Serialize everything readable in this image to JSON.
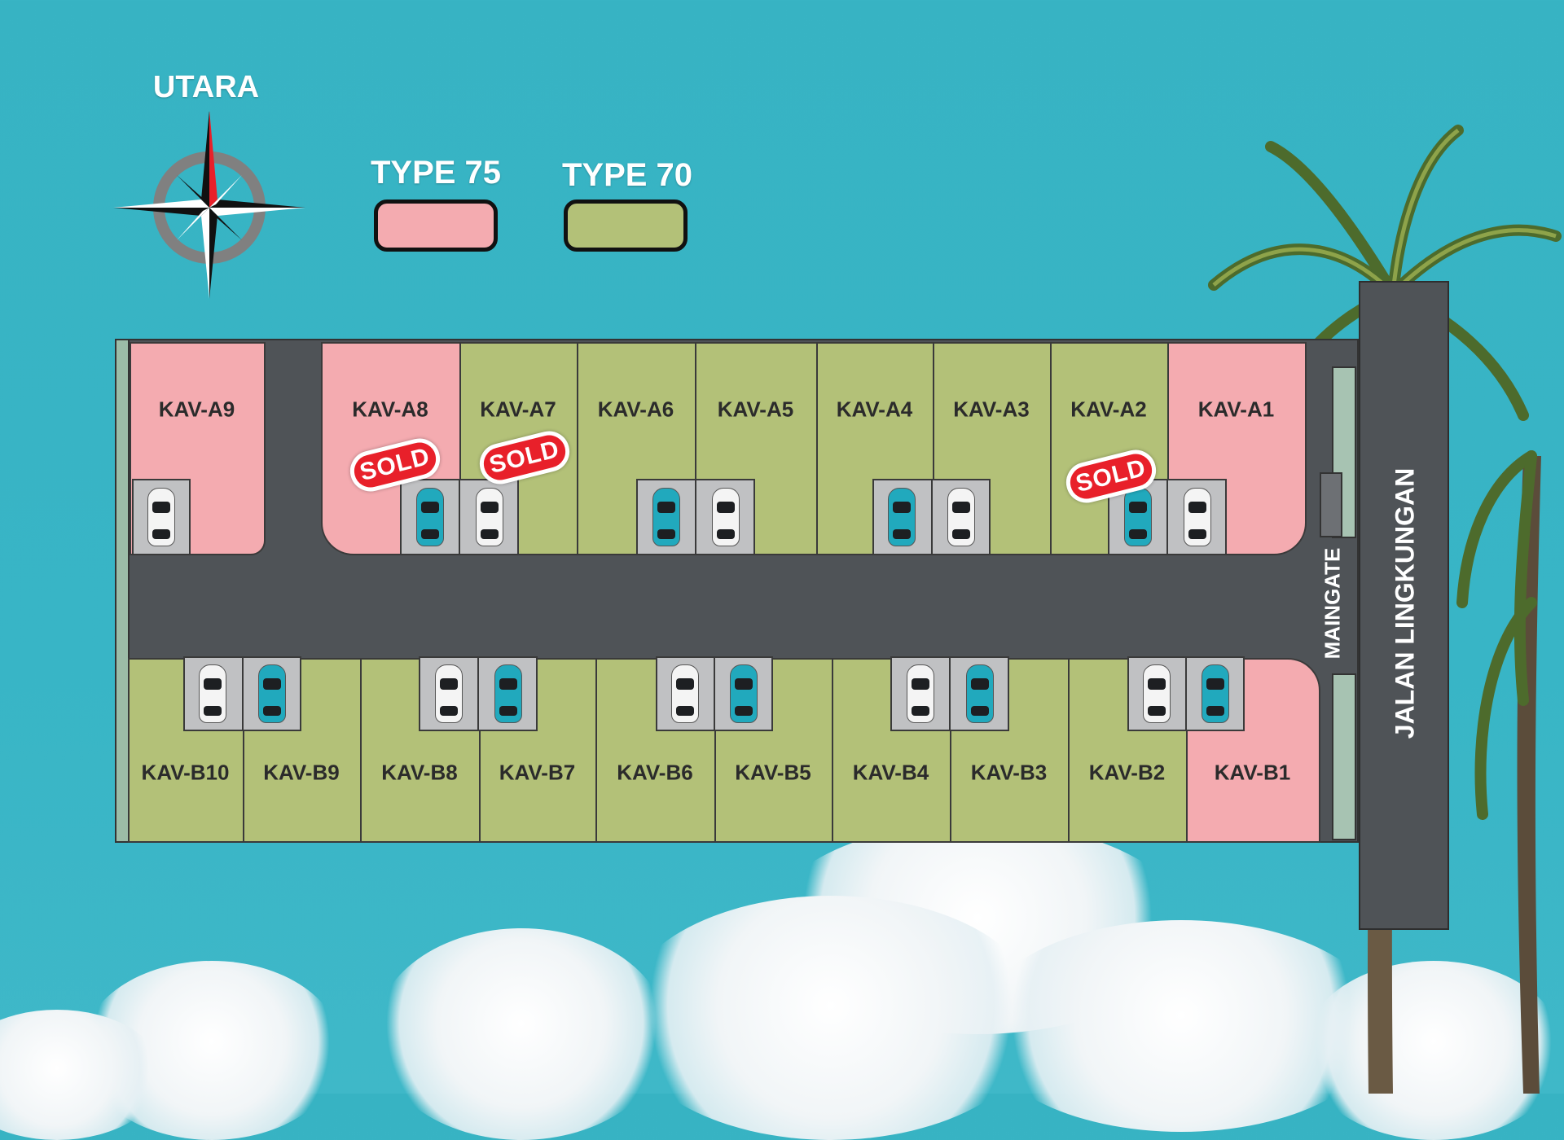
{
  "compass": {
    "label": "UTARA",
    "icon": "compass-rose-icon"
  },
  "legend": [
    {
      "label": "TYPE 75",
      "color": "#f4abb0"
    },
    {
      "label": "TYPE 70",
      "color": "#b3c178"
    }
  ],
  "roads": {
    "main_road": "JALAN LINGKUNGAN",
    "gate": "MAINGATE"
  },
  "sold_label": "SOLD",
  "lots_top": [
    {
      "label": "KAV-A9",
      "type": "TYPE 75",
      "sold": false
    },
    {
      "label": "KAV-A8",
      "type": "TYPE 75",
      "sold": true
    },
    {
      "label": "KAV-A7",
      "type": "TYPE 70",
      "sold": true
    },
    {
      "label": "KAV-A6",
      "type": "TYPE 70",
      "sold": false
    },
    {
      "label": "KAV-A5",
      "type": "TYPE 70",
      "sold": false
    },
    {
      "label": "KAV-A4",
      "type": "TYPE 70",
      "sold": false
    },
    {
      "label": "KAV-A3",
      "type": "TYPE 70",
      "sold": false
    },
    {
      "label": "KAV-A2",
      "type": "TYPE 70",
      "sold": true
    },
    {
      "label": "KAV-A1",
      "type": "TYPE 75",
      "sold": false
    }
  ],
  "lots_bottom": [
    {
      "label": "KAV-B10",
      "type": "TYPE 70",
      "sold": false
    },
    {
      "label": "KAV-B9",
      "type": "TYPE 70",
      "sold": false
    },
    {
      "label": "KAV-B8",
      "type": "TYPE 70",
      "sold": false
    },
    {
      "label": "KAV-B7",
      "type": "TYPE 70",
      "sold": false
    },
    {
      "label": "KAV-B6",
      "type": "TYPE 70",
      "sold": false
    },
    {
      "label": "KAV-B5",
      "type": "TYPE 70",
      "sold": false
    },
    {
      "label": "KAV-B4",
      "type": "TYPE 70",
      "sold": false
    },
    {
      "label": "KAV-B3",
      "type": "TYPE 70",
      "sold": false
    },
    {
      "label": "KAV-B2",
      "type": "TYPE 70",
      "sold": false
    },
    {
      "label": "KAV-B1",
      "type": "TYPE 75",
      "sold": false
    }
  ],
  "colors": {
    "sky": "#37b3c3",
    "road": "#4f5357",
    "parking": "#c0c1c3",
    "sold_badge": "#e8202a",
    "car_teal": "#21a9bd",
    "car_white": "#f4f4f4"
  }
}
